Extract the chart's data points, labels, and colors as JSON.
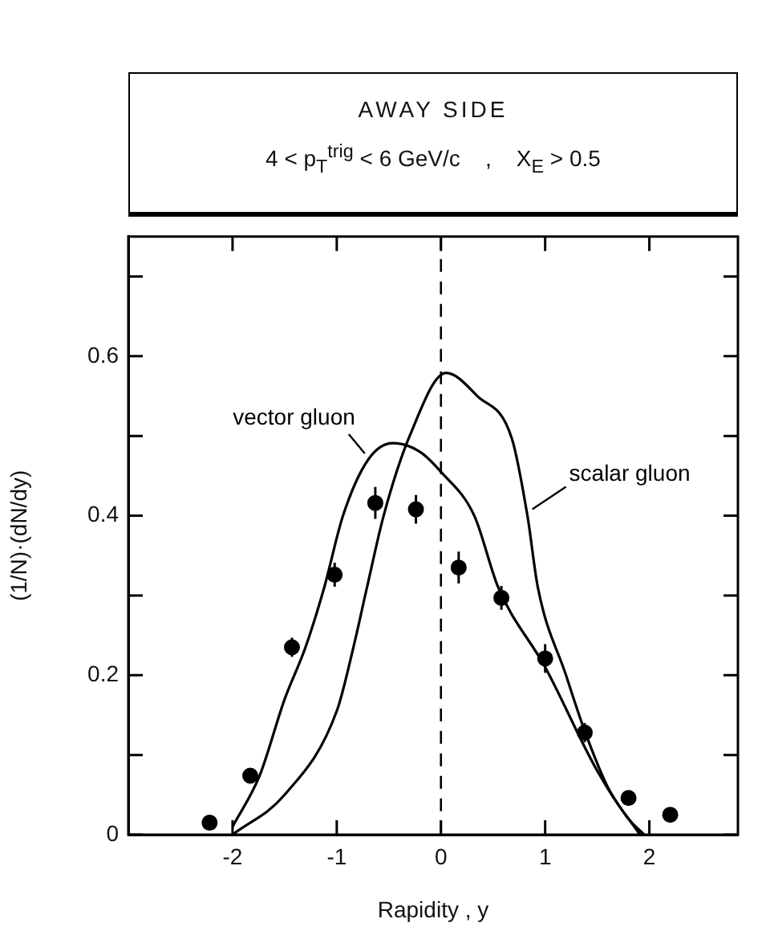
{
  "chart_data": {
    "type": "line",
    "title": "AWAY SIDE",
    "subtitle": "4 < p$_{T}$$^{trig}$ < 6 GeV/c    ,    X$_{E}$ > 0.5",
    "xlabel": "Rapidity , y",
    "ylabel": "(1/N)·(dN/dy)",
    "xlim": [
      -3,
      2.85
    ],
    "xticks": [
      -2,
      -1,
      0,
      1,
      2
    ],
    "ylim": [
      0,
      0.75
    ],
    "yticks": [
      0,
      {
        "value": 0.1,
        "label": null
      },
      0.2,
      {
        "value": 0.3,
        "label": null
      },
      0.4,
      {
        "value": 0.5,
        "label": null
      },
      0.6,
      {
        "value": 0.7,
        "label": null
      }
    ],
    "grid": false,
    "legend": false,
    "ref_lines": [
      {
        "axis": "x",
        "value": 0,
        "line_style": "dashed",
        "color": "#000000"
      }
    ],
    "series": [
      {
        "type": "scatter",
        "color": "#000000",
        "marker": "circle",
        "x": [
          -2.22,
          -1.83,
          -1.43,
          -1.02,
          -0.63,
          -0.24,
          0.17,
          0.58,
          1.0,
          1.38,
          1.8,
          2.2
        ],
        "values": [
          0.015,
          0.074,
          0.235,
          0.326,
          0.416,
          0.408,
          0.335,
          0.297,
          0.221,
          0.128,
          0.046,
          0.025
        ],
        "errors": [
          null,
          null,
          0.012,
          0.015,
          0.02,
          0.018,
          0.02,
          0.015,
          0.018,
          0.012,
          null,
          null
        ]
      },
      {
        "name": "vector gluon",
        "color": "#000000",
        "line_style": "solid",
        "x": [
          -2.0,
          -1.74,
          -1.5,
          -1.3,
          -1.12,
          -0.94,
          -0.7,
          -0.46,
          -0.2,
          0.0,
          0.32,
          0.55,
          1.0,
          1.5,
          1.8,
          1.95
        ],
        "values": [
          0.01,
          0.074,
          0.17,
          0.235,
          0.31,
          0.4,
          0.47,
          0.491,
          0.48,
          0.455,
          0.4,
          0.31,
          0.21,
          0.08,
          0.02,
          0.0
        ]
      },
      {
        "name": "scalar gluon",
        "color": "#000000",
        "line_style": "solid",
        "x": [
          -2.0,
          -1.5,
          -1.0,
          -0.84,
          -0.71,
          -0.55,
          -0.3,
          0.05,
          0.35,
          0.68,
          0.83,
          0.93,
          1.2,
          1.38,
          1.6,
          1.91
        ],
        "values": [
          0.0,
          0.05,
          0.155,
          0.235,
          0.31,
          0.4,
          0.5,
          0.579,
          0.55,
          0.497,
          0.4,
          0.31,
          0.2,
          0.13,
          0.06,
          0.0
        ]
      }
    ]
  }
}
